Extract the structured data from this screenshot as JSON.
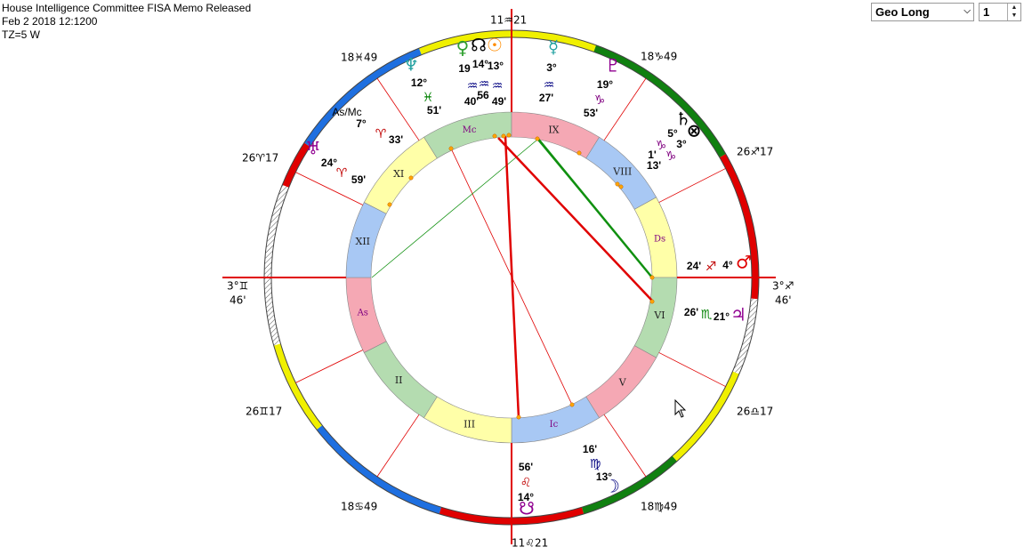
{
  "header": {
    "title": "House Intelligence Committee FISA Memo Released",
    "date": "Feb 2 2018 12:1200",
    "tz": "TZ=5 W"
  },
  "controls": {
    "mode": "Geo Long",
    "step": "1"
  },
  "cusps": [
    {
      "label": "11♒21"
    },
    {
      "label": "18♓49"
    },
    {
      "label": "26♈17"
    },
    {
      "label": "3°♊",
      "sub": "46'"
    },
    {
      "label": "26♊17"
    },
    {
      "label": "18♋49"
    },
    {
      "label": "11♌21"
    },
    {
      "label": "18♍49"
    },
    {
      "label": "26♎17"
    },
    {
      "label": "3°♐",
      "sub": "46'"
    },
    {
      "label": "26♐17"
    },
    {
      "label": "18♑49"
    }
  ],
  "houses": [
    "Mc",
    "IX",
    "VIII",
    "Ds",
    "VI",
    "V",
    "Ic",
    "III",
    "II",
    "As",
    "XII",
    "XI"
  ],
  "planets": [
    {
      "glyph": "♀",
      "deg": "19",
      "sign": "♒",
      "min": "40'"
    },
    {
      "glyph": "☊",
      "deg": "14°",
      "sign": "♒",
      "min": "56"
    },
    {
      "glyph": "☉",
      "deg": "13°",
      "sign": "♒",
      "min": "49'"
    },
    {
      "glyph": "☿",
      "deg": "3°",
      "sign": "♒",
      "min": "27'"
    },
    {
      "glyph": "♇",
      "deg": "19°",
      "sign": "♑",
      "min": "53'"
    },
    {
      "glyph": "♄",
      "deg": "5°",
      "sign": "♑",
      "min": "1'"
    },
    {
      "glyph": "⊗",
      "deg": "3°",
      "sign": "♑",
      "min": "13'"
    },
    {
      "glyph": "♂",
      "deg": "4°",
      "sign": "♐",
      "min": "24'"
    },
    {
      "glyph": "♃",
      "deg": "21°",
      "sign": "♏",
      "min": "26'"
    },
    {
      "glyph": "☽",
      "deg": "13°",
      "sign": "♍",
      "min": "16'"
    },
    {
      "glyph": "☋",
      "deg": "14°",
      "sign": "♌",
      "min": "56'"
    },
    {
      "glyph": "♅",
      "deg": "24°",
      "sign": "♈",
      "min": "59'"
    },
    {
      "glyph": "♆",
      "deg": "12°",
      "sign": "♓",
      "min": "51'"
    },
    {
      "glyph": "As/Mc",
      "deg": "7°",
      "sign": "♈",
      "min": "33'"
    }
  ]
}
